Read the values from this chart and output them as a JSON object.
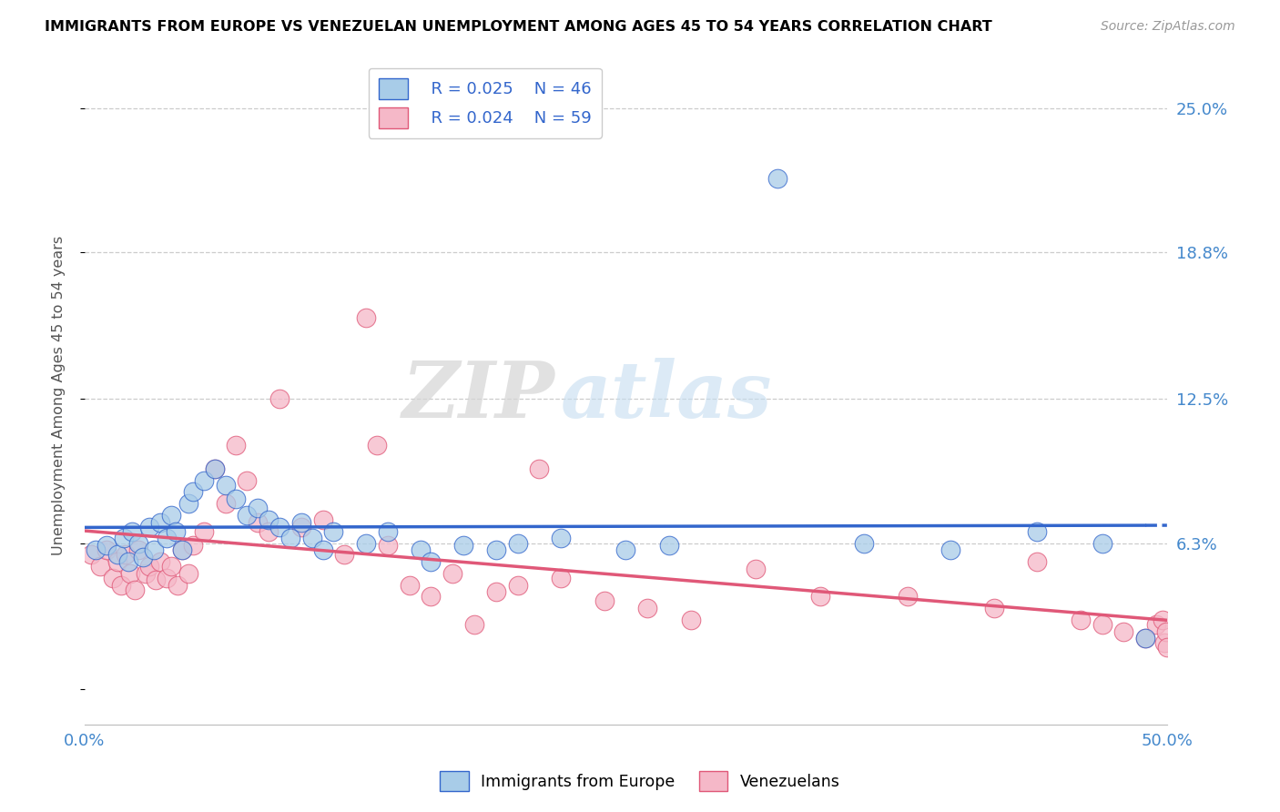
{
  "title": "IMMIGRANTS FROM EUROPE VS VENEZUELAN UNEMPLOYMENT AMONG AGES 45 TO 54 YEARS CORRELATION CHART",
  "source": "Source: ZipAtlas.com",
  "ylabel": "Unemployment Among Ages 45 to 54 years",
  "xlim": [
    0.0,
    0.5
  ],
  "ylim": [
    -0.015,
    0.268
  ],
  "yticks": [
    0.0,
    0.063,
    0.125,
    0.188,
    0.25
  ],
  "ytick_labels": [
    "",
    "6.3%",
    "12.5%",
    "18.8%",
    "25.0%"
  ],
  "legend_blue_r": "R = 0.025",
  "legend_blue_n": "N = 46",
  "legend_pink_r": "R = 0.024",
  "legend_pink_n": "N = 59",
  "legend_label_blue": "Immigrants from Europe",
  "legend_label_pink": "Venezuelans",
  "color_blue": "#a8cce8",
  "color_pink": "#f5b8c8",
  "color_blue_line": "#3366cc",
  "color_pink_line": "#e05878",
  "watermark_zip": "ZIP",
  "watermark_atlas": "atlas",
  "blue_scatter_x": [
    0.005,
    0.01,
    0.015,
    0.018,
    0.02,
    0.022,
    0.025,
    0.027,
    0.03,
    0.032,
    0.035,
    0.038,
    0.04,
    0.042,
    0.045,
    0.048,
    0.05,
    0.055,
    0.06,
    0.065,
    0.07,
    0.075,
    0.08,
    0.085,
    0.09,
    0.095,
    0.1,
    0.105,
    0.11,
    0.115,
    0.13,
    0.14,
    0.155,
    0.16,
    0.175,
    0.19,
    0.2,
    0.22,
    0.25,
    0.27,
    0.32,
    0.36,
    0.4,
    0.44,
    0.47,
    0.49
  ],
  "blue_scatter_y": [
    0.06,
    0.062,
    0.058,
    0.065,
    0.055,
    0.068,
    0.063,
    0.057,
    0.07,
    0.06,
    0.072,
    0.065,
    0.075,
    0.068,
    0.06,
    0.08,
    0.085,
    0.09,
    0.095,
    0.088,
    0.082,
    0.075,
    0.078,
    0.073,
    0.07,
    0.065,
    0.072,
    0.065,
    0.06,
    0.068,
    0.063,
    0.068,
    0.06,
    0.055,
    0.062,
    0.06,
    0.063,
    0.065,
    0.06,
    0.062,
    0.22,
    0.063,
    0.06,
    0.068,
    0.063,
    0.022
  ],
  "pink_scatter_x": [
    0.003,
    0.007,
    0.01,
    0.013,
    0.015,
    0.017,
    0.019,
    0.021,
    0.023,
    0.025,
    0.028,
    0.03,
    0.033,
    0.035,
    0.038,
    0.04,
    0.043,
    0.045,
    0.048,
    0.05,
    0.055,
    0.06,
    0.065,
    0.07,
    0.075,
    0.08,
    0.085,
    0.09,
    0.1,
    0.11,
    0.12,
    0.13,
    0.135,
    0.14,
    0.15,
    0.16,
    0.17,
    0.18,
    0.19,
    0.2,
    0.21,
    0.22,
    0.24,
    0.26,
    0.28,
    0.31,
    0.34,
    0.38,
    0.42,
    0.44,
    0.46,
    0.47,
    0.48,
    0.49,
    0.495,
    0.498,
    0.499,
    0.4995,
    0.4999
  ],
  "pink_scatter_y": [
    0.058,
    0.053,
    0.06,
    0.048,
    0.055,
    0.045,
    0.058,
    0.05,
    0.043,
    0.06,
    0.05,
    0.053,
    0.047,
    0.055,
    0.048,
    0.053,
    0.045,
    0.06,
    0.05,
    0.062,
    0.068,
    0.095,
    0.08,
    0.105,
    0.09,
    0.072,
    0.068,
    0.125,
    0.07,
    0.073,
    0.058,
    0.16,
    0.105,
    0.062,
    0.045,
    0.04,
    0.05,
    0.028,
    0.042,
    0.045,
    0.095,
    0.048,
    0.038,
    0.035,
    0.03,
    0.052,
    0.04,
    0.04,
    0.035,
    0.055,
    0.03,
    0.028,
    0.025,
    0.022,
    0.028,
    0.03,
    0.02,
    0.025,
    0.018
  ]
}
